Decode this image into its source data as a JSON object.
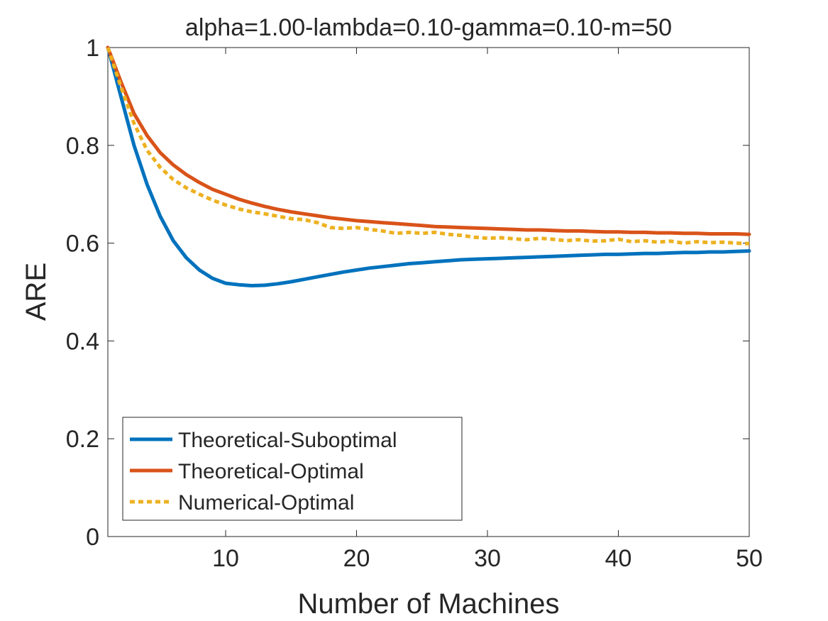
{
  "chart_data": {
    "type": "line",
    "title": "alpha=1.00-lambda=0.10-gamma=0.10-m=50",
    "xlabel": "Number of Machines",
    "ylabel": "ARE",
    "xlim": [
      1,
      50
    ],
    "ylim": [
      0,
      1
    ],
    "xticks": [
      10,
      20,
      30,
      40,
      50
    ],
    "xtick_labels": [
      "10",
      "20",
      "30",
      "40",
      "50"
    ],
    "yticks": [
      0,
      0.2,
      0.4,
      0.6,
      0.8,
      1
    ],
    "ytick_labels": [
      "0",
      "0.2",
      "0.4",
      "0.6",
      "0.8",
      "1"
    ],
    "grid": false,
    "legend_position": "bottom-left",
    "x": [
      1,
      2,
      3,
      4,
      5,
      6,
      7,
      8,
      9,
      10,
      11,
      12,
      13,
      14,
      15,
      16,
      17,
      18,
      19,
      20,
      21,
      22,
      23,
      24,
      25,
      26,
      27,
      28,
      29,
      30,
      31,
      32,
      33,
      34,
      35,
      36,
      37,
      38,
      39,
      40,
      41,
      42,
      43,
      44,
      45,
      46,
      47,
      48,
      49,
      50
    ],
    "series": [
      {
        "name": "Theoretical-Suboptimal",
        "color": "#0072BD",
        "style": "solid",
        "values": [
          1.0,
          0.9,
          0.8,
          0.72,
          0.655,
          0.605,
          0.57,
          0.545,
          0.528,
          0.518,
          0.515,
          0.513,
          0.514,
          0.517,
          0.521,
          0.526,
          0.531,
          0.536,
          0.541,
          0.545,
          0.549,
          0.552,
          0.555,
          0.558,
          0.56,
          0.562,
          0.564,
          0.566,
          0.567,
          0.568,
          0.569,
          0.57,
          0.571,
          0.572,
          0.573,
          0.574,
          0.575,
          0.576,
          0.577,
          0.577,
          0.578,
          0.579,
          0.579,
          0.58,
          0.581,
          0.581,
          0.582,
          0.582,
          0.583,
          0.584
        ]
      },
      {
        "name": "Theoretical-Optimal",
        "color": "#D95319",
        "style": "solid",
        "values": [
          1.0,
          0.93,
          0.865,
          0.82,
          0.785,
          0.76,
          0.74,
          0.724,
          0.71,
          0.7,
          0.69,
          0.682,
          0.675,
          0.669,
          0.664,
          0.66,
          0.656,
          0.652,
          0.649,
          0.646,
          0.644,
          0.642,
          0.64,
          0.638,
          0.636,
          0.634,
          0.633,
          0.632,
          0.631,
          0.63,
          0.629,
          0.628,
          0.627,
          0.627,
          0.626,
          0.625,
          0.625,
          0.624,
          0.623,
          0.623,
          0.622,
          0.622,
          0.621,
          0.621,
          0.62,
          0.62,
          0.619,
          0.619,
          0.619,
          0.618
        ]
      },
      {
        "name": "Numerical-Optimal",
        "color": "#EDB120",
        "style": "dotted",
        "values": [
          1.0,
          0.92,
          0.845,
          0.79,
          0.755,
          0.73,
          0.713,
          0.7,
          0.688,
          0.678,
          0.67,
          0.664,
          0.66,
          0.655,
          0.65,
          0.648,
          0.642,
          0.632,
          0.63,
          0.632,
          0.628,
          0.625,
          0.62,
          0.622,
          0.62,
          0.622,
          0.618,
          0.616,
          0.612,
          0.61,
          0.611,
          0.609,
          0.607,
          0.61,
          0.608,
          0.605,
          0.607,
          0.604,
          0.605,
          0.608,
          0.603,
          0.605,
          0.602,
          0.604,
          0.6,
          0.603,
          0.601,
          0.602,
          0.6,
          0.599
        ]
      }
    ]
  }
}
